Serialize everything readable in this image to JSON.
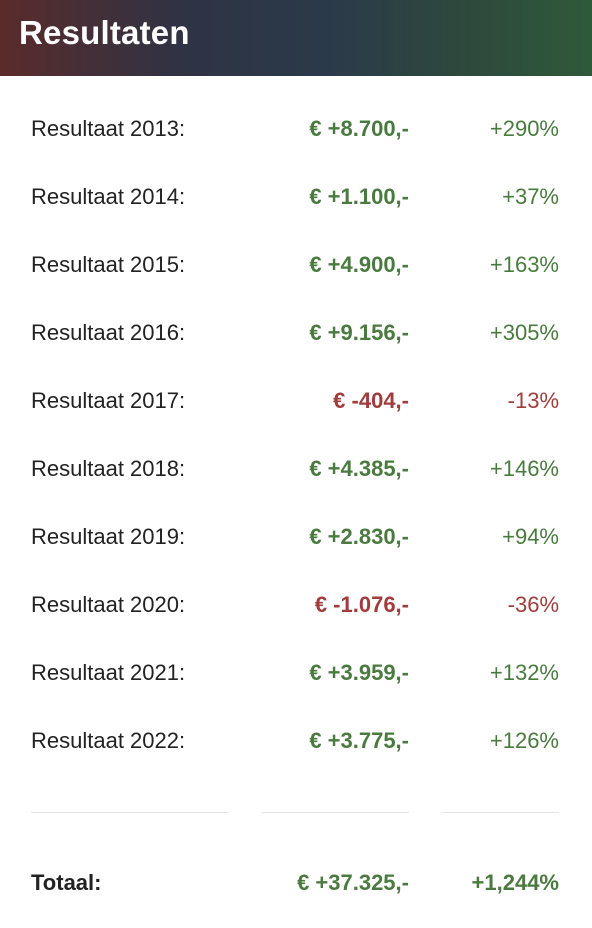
{
  "header": {
    "title": "Resultaten"
  },
  "results": [
    {
      "label": "Resultaat 2013:",
      "amount": "€ +8.700,-",
      "percent": "+290%",
      "status": "pos"
    },
    {
      "label": "Resultaat 2014:",
      "amount": "€ +1.100,-",
      "percent": "+37%",
      "status": "pos"
    },
    {
      "label": "Resultaat 2015:",
      "amount": "€ +4.900,-",
      "percent": "+163%",
      "status": "pos"
    },
    {
      "label": "Resultaat 2016:",
      "amount": "€ +9.156,-",
      "percent": "+305%",
      "status": "pos"
    },
    {
      "label": "Resultaat 2017:",
      "amount": "€ -404,-",
      "percent": "-13%",
      "status": "neg"
    },
    {
      "label": "Resultaat 2018:",
      "amount": "€ +4.385,-",
      "percent": "+146%",
      "status": "pos"
    },
    {
      "label": "Resultaat 2019:",
      "amount": "€ +2.830,-",
      "percent": "+94%",
      "status": "pos"
    },
    {
      "label": "Resultaat 2020:",
      "amount": "€ -1.076,-",
      "percent": "-36%",
      "status": "neg"
    },
    {
      "label": "Resultaat 2021:",
      "amount": "€ +3.959,-",
      "percent": "+132%",
      "status": "pos"
    },
    {
      "label": "Resultaat 2022:",
      "amount": "€ +3.775,-",
      "percent": "+126%",
      "status": "pos"
    }
  ],
  "total": {
    "label": "Totaal:",
    "amount": "€ +37.325,-",
    "percent": "+1,244%",
    "status": "pos"
  },
  "colors": {
    "positive": "#4a7a3f",
    "negative": "#a03c3c",
    "text": "#222222"
  }
}
